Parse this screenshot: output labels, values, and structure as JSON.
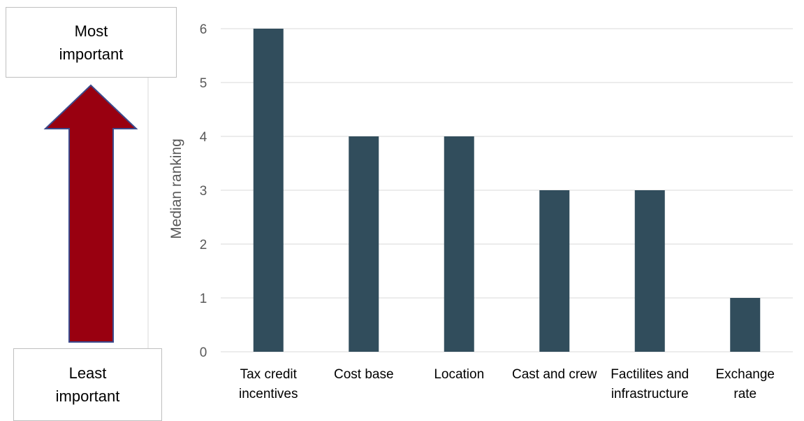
{
  "annotation": {
    "top_label": "Most\nimportant",
    "bottom_label": "Least\nimportant",
    "arrow_color": "#990010",
    "arrow_border_color": "#3b4a8c"
  },
  "chart_data": {
    "type": "bar",
    "categories": [
      "Tax credit\nincentives",
      "Cost base",
      "Location",
      "Cast and crew",
      "Factilites and\ninfrastructure",
      "Exchange\nrate"
    ],
    "values": [
      6,
      4,
      4,
      3,
      3,
      1
    ],
    "title": "",
    "xlabel": "",
    "ylabel": "Median ranking",
    "ylim": [
      0,
      6
    ],
    "yticks": [
      0,
      1,
      2,
      3,
      4,
      5,
      6
    ],
    "grid": true,
    "legend": "none",
    "bar_color": "#314d5c",
    "grid_color": "#d9d9d9"
  }
}
